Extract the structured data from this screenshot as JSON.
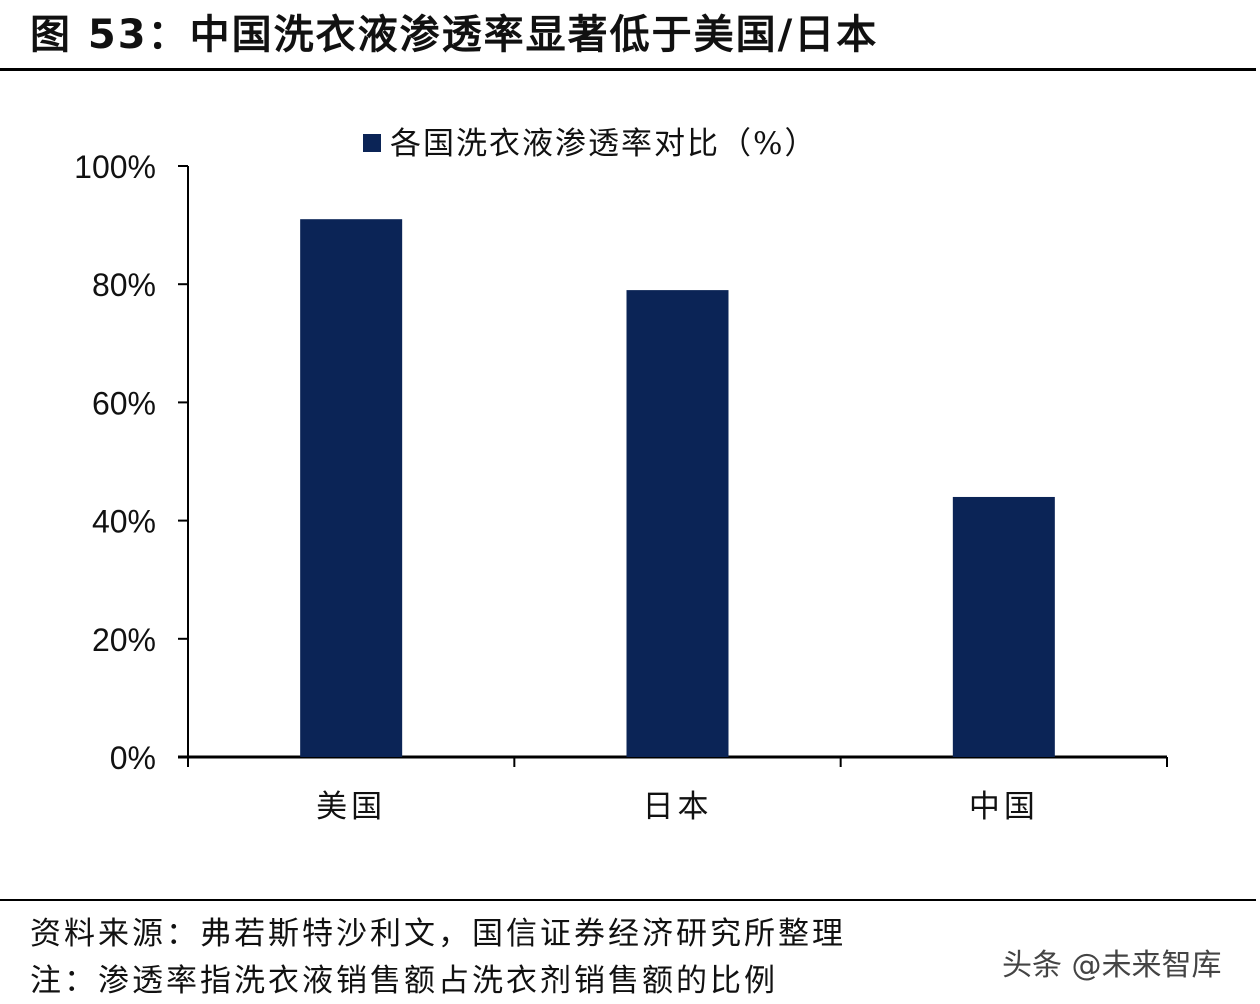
{
  "title": "图 53：中国洗衣液渗透率显著低于美国/日本",
  "chart_data": {
    "type": "bar",
    "title": "",
    "legend": {
      "label": "各国洗衣液渗透率对比（%）",
      "placement": "top-center"
    },
    "categories": [
      "美国",
      "日本",
      "中国"
    ],
    "series": [
      {
        "name": "各国洗衣液渗透率对比（%）",
        "values": [
          91,
          79,
          44
        ],
        "color": "#0b2456"
      }
    ],
    "yticks": [
      "0%",
      "20%",
      "40%",
      "60%",
      "80%",
      "100%"
    ],
    "ylim": [
      0,
      100
    ],
    "xlabel": "",
    "ylabel": "",
    "grid": false
  },
  "footer": {
    "source": "资料来源：弗若斯特沙利文，国信证券经济研究所整理",
    "note": "注：渗透率指洗衣液销售额占洗衣剂销售额的比例"
  },
  "watermark": "头条 @未来智库"
}
